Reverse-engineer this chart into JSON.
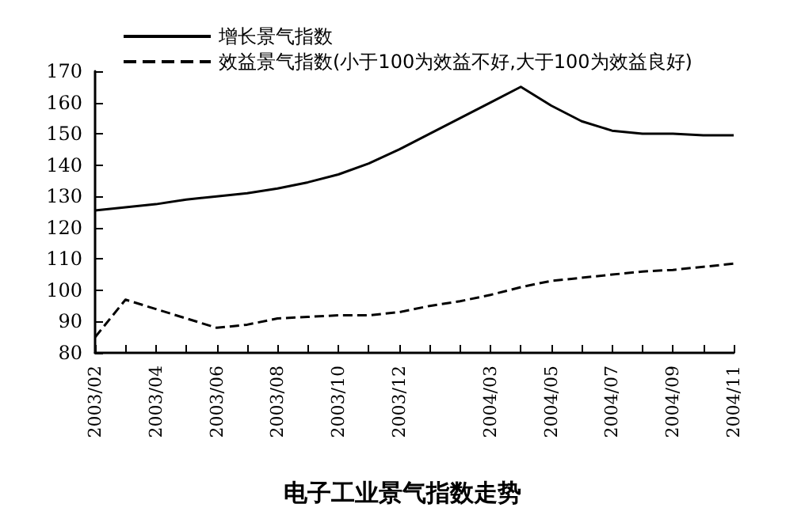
{
  "chart_data": {
    "type": "line",
    "title": "电子工业景气指数走势",
    "categories": [
      "2003/02",
      null,
      "2003/04",
      null,
      "2003/06",
      null,
      "2003/08",
      null,
      "2003/10",
      null,
      "2003/12",
      null,
      null,
      "2004/03",
      null,
      "2004/05",
      null,
      "2004/07",
      null,
      "2004/09",
      null,
      "2004/11"
    ],
    "series": [
      {
        "name": "增长景气指数",
        "color": "#000000",
        "line_style": "solid",
        "values": [
          125.5,
          126.5,
          127.5,
          129,
          130,
          131,
          132.5,
          134.5,
          137,
          140.5,
          145,
          150,
          155,
          160,
          165,
          159,
          154,
          151,
          150,
          150,
          149.5,
          149.5
        ]
      },
      {
        "name": "效益景气指数(小于100为效益不好,大于100为效益良好)",
        "color": "#000000",
        "line_style": "dashed",
        "values": [
          85,
          97,
          94,
          91,
          88,
          89,
          91,
          91.5,
          92,
          92,
          93,
          95,
          96.5,
          98.5,
          101,
          103,
          104,
          105,
          106,
          106.5,
          107.5,
          108.5
        ]
      }
    ],
    "ylim": [
      80,
      170
    ],
    "yticks": [
      80,
      90,
      100,
      110,
      120,
      130,
      140,
      150,
      160,
      170
    ],
    "grid": false,
    "legend": "top left",
    "marker": "none"
  }
}
